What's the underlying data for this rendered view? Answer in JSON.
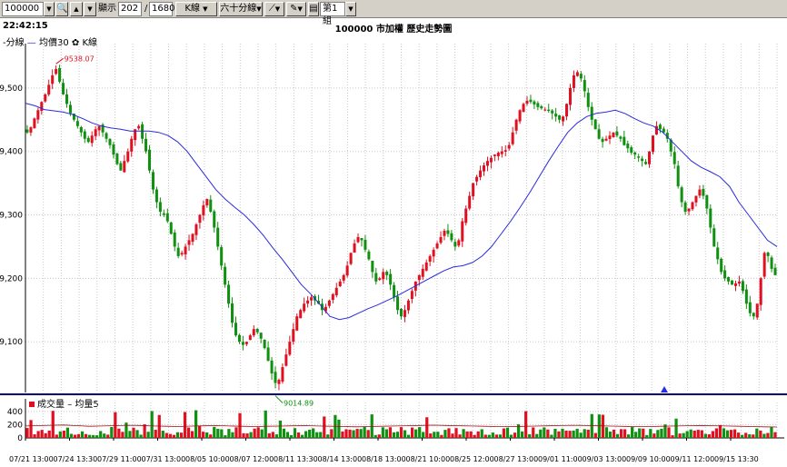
{
  "toolbar": {
    "code_value": "100000",
    "display_label": "顯示",
    "display_value": "202",
    "slash": "/",
    "total_value": "1680",
    "chart_type": "K線",
    "interval": "六十分線",
    "group": "第1組"
  },
  "header": {
    "time": "22:42:15",
    "title": "100000 市加權  歷史走勢圖"
  },
  "legend": {
    "price_prefix": "-分線",
    "ma_label": "均價30",
    "kline_label": "K線",
    "volume_label": "成交量",
    "volume_ma_label": "均量5"
  },
  "colors": {
    "up": "#e01020",
    "down": "#109010",
    "ma": "#2a2ae0",
    "axis": "#000080",
    "marker": "#2a2ae0"
  },
  "chart_data": [
    {
      "type": "candlestick",
      "title": "100000 市加權  歷史走勢圖",
      "ylim": [
        9020,
        9570
      ],
      "y_ticks": [
        9100,
        9200,
        9300,
        9400,
        9500
      ],
      "y_tick_labels": [
        "9,100",
        "9,200",
        "9,300",
        "9,400",
        "9,500"
      ],
      "x_tick_labels": [
        "07/21 13:00",
        "07/24 13:30",
        "07/29 11:00",
        "07/31 13:00",
        "08/05 10:00",
        "08/07 12:00",
        "08/11 13:30",
        "08/14 13:00",
        "08/18 13:00",
        "08/21 10:00",
        "08/25 12:00",
        "08/27 13:00",
        "09/01 11:00",
        "09/03 13:00",
        "09/09 10:00",
        "09/11 12:00",
        "09/15 13:30"
      ],
      "annotations": [
        {
          "label": "9538.07",
          "value": 9538.07,
          "kind": "high"
        },
        {
          "label": "9014.89",
          "value": 9014.89,
          "kind": "low"
        }
      ],
      "close_path": [
        9430,
        9438,
        9452,
        9465,
        9478,
        9490,
        9505,
        9520,
        9530,
        9510,
        9490,
        9475,
        9460,
        9450,
        9440,
        9430,
        9420,
        9415,
        9425,
        9435,
        9440,
        9430,
        9420,
        9410,
        9395,
        9380,
        9370,
        9385,
        9400,
        9420,
        9435,
        9440,
        9420,
        9400,
        9370,
        9340,
        9320,
        9305,
        9300,
        9290,
        9270,
        9250,
        9235,
        9240,
        9250,
        9260,
        9270,
        9285,
        9300,
        9315,
        9325,
        9305,
        9280,
        9250,
        9220,
        9190,
        9160,
        9130,
        9110,
        9100,
        9095,
        9100,
        9110,
        9120,
        9115,
        9105,
        9090,
        9070,
        9050,
        9035,
        9040,
        9060,
        9080,
        9100,
        9120,
        9140,
        9150,
        9160,
        9165,
        9170,
        9165,
        9160,
        9150,
        9155,
        9165,
        9175,
        9185,
        9195,
        9205,
        9220,
        9240,
        9255,
        9265,
        9260,
        9245,
        9230,
        9210,
        9195,
        9200,
        9210,
        9205,
        9190,
        9170,
        9150,
        9140,
        9150,
        9165,
        9180,
        9195,
        9205,
        9215,
        9225,
        9235,
        9245,
        9255,
        9265,
        9275,
        9270,
        9260,
        9250,
        9260,
        9290,
        9310,
        9330,
        9350,
        9360,
        9370,
        9378,
        9385,
        9390,
        9395,
        9398,
        9400,
        9402,
        9410,
        9430,
        9450,
        9465,
        9475,
        9480,
        9478,
        9474,
        9470,
        9468,
        9466,
        9464,
        9460,
        9455,
        9450,
        9455,
        9475,
        9500,
        9520,
        9525,
        9515,
        9495,
        9470,
        9450,
        9435,
        9420,
        9415,
        9420,
        9425,
        9430,
        9425,
        9420,
        9410,
        9405,
        9398,
        9395,
        9390,
        9385,
        9380,
        9400,
        9425,
        9440,
        9435,
        9430,
        9420,
        9400,
        9380,
        9345,
        9320,
        9305,
        9310,
        9320,
        9330,
        9340,
        9330,
        9310,
        9280,
        9250,
        9230,
        9210,
        9200,
        9195,
        9190,
        9192,
        9195,
        9180,
        9160,
        9145,
        9140,
        9160,
        9200,
        9240,
        9235,
        9215,
        9205
      ],
      "ma_path": [
        9476,
        9472,
        9466,
        9464,
        9462,
        9458,
        9452,
        9445,
        9440,
        9437,
        9435,
        9432,
        9432,
        9432,
        9430,
        9425,
        9415,
        9400,
        9380,
        9360,
        9340,
        9325,
        9312,
        9300,
        9285,
        9268,
        9248,
        9230,
        9210,
        9190,
        9175,
        9158,
        9140,
        9135,
        9138,
        9145,
        9152,
        9158,
        9165,
        9172,
        9180,
        9188,
        9196,
        9204,
        9212,
        9218,
        9220,
        9225,
        9235,
        9250,
        9270,
        9290,
        9312,
        9335,
        9360,
        9385,
        9408,
        9430,
        9445,
        9455,
        9460,
        9462,
        9465,
        9460,
        9452,
        9445,
        9440,
        9430,
        9415,
        9400,
        9385,
        9375,
        9368,
        9360,
        9345,
        9320,
        9300,
        9280,
        9260,
        9250
      ]
    },
    {
      "type": "bar",
      "title": "成交量",
      "ylim": [
        0,
        480
      ],
      "y_ticks": [
        0,
        200,
        400
      ],
      "y_tick_labels": [
        "0",
        "200",
        "400"
      ],
      "ma_path": [
        180,
        185,
        190,
        195,
        185,
        175,
        180,
        185,
        190,
        188,
        180,
        175,
        172,
        178,
        182,
        186,
        180,
        176,
        172,
        175,
        178,
        182,
        185,
        180,
        176,
        172,
        168,
        172,
        176,
        180,
        184,
        188,
        192,
        188,
        184,
        180,
        176,
        172,
        170,
        174,
        178,
        182,
        186,
        190,
        186,
        182,
        178,
        174,
        170,
        172,
        176,
        180,
        184,
        188,
        184,
        180,
        176,
        172,
        168,
        165
      ]
    }
  ]
}
